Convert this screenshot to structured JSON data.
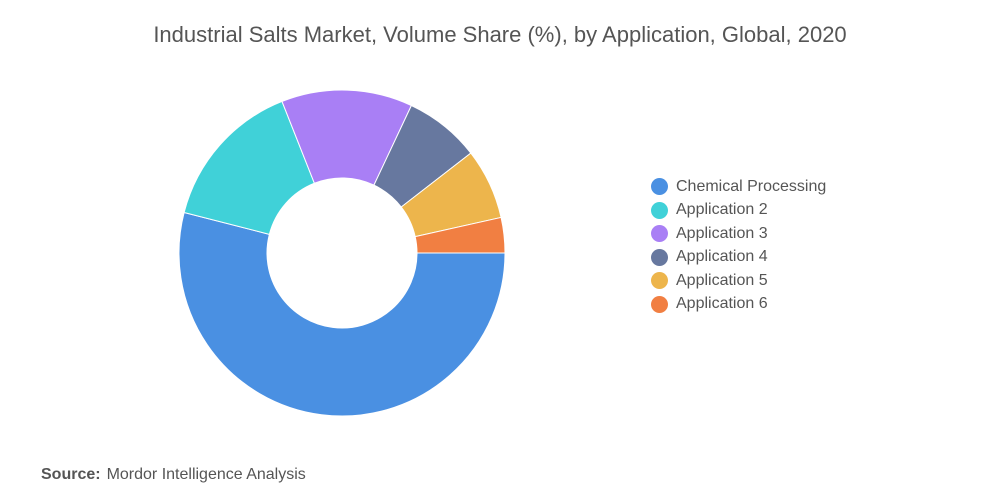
{
  "title": "Industrial Salts Market, Volume Share (%), by Application, Global, 2020",
  "source": {
    "label": "Source:",
    "text": "Mordor Intelligence Analysis"
  },
  "chart_data": {
    "type": "pie",
    "donut": true,
    "title": "Industrial Salts Market, Volume Share (%), by Application, Global, 2020",
    "legend_position": "right",
    "series": [
      {
        "name": "Chemical Processing",
        "value": 54,
        "color": "#4A90E2"
      },
      {
        "name": "Application 2",
        "value": 15,
        "color": "#40D1D8"
      },
      {
        "name": "Application 3",
        "value": 13,
        "color": "#A97FF5"
      },
      {
        "name": "Application 4",
        "value": 7.5,
        "color": "#67789F"
      },
      {
        "name": "Application 5",
        "value": 7,
        "color": "#EDB54C"
      },
      {
        "name": "Application 6",
        "value": 3.5,
        "color": "#F17F42"
      }
    ]
  }
}
